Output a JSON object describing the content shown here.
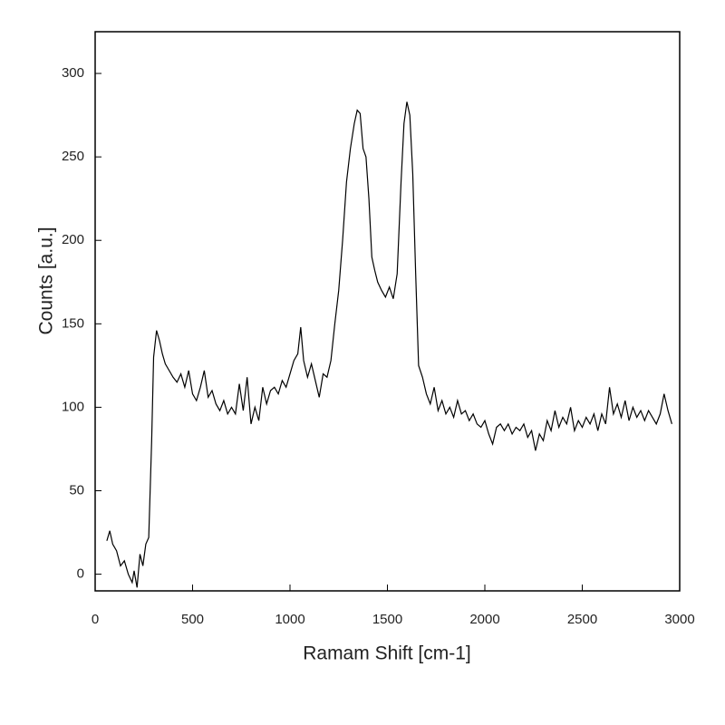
{
  "chart_data": {
    "type": "line",
    "x_label": "Ramam Shift [cm-1]",
    "y_label": "Counts [a.u.]",
    "xlim": [
      0,
      3000
    ],
    "ylim": [
      -10,
      325
    ],
    "xticks": [
      0,
      500,
      1000,
      1500,
      2000,
      2500,
      3000
    ],
    "yticks": [
      0,
      50,
      100,
      150,
      200,
      250,
      300
    ],
    "grid": false,
    "series": [
      {
        "color": "#000000",
        "x": [
          60,
          75,
          90,
          110,
          130,
          150,
          170,
          190,
          200,
          215,
          230,
          245,
          260,
          275,
          290,
          300,
          315,
          330,
          345,
          360,
          380,
          400,
          420,
          440,
          460,
          480,
          500,
          520,
          540,
          560,
          580,
          600,
          620,
          640,
          660,
          680,
          700,
          720,
          740,
          760,
          780,
          800,
          820,
          840,
          860,
          880,
          900,
          920,
          940,
          960,
          980,
          1000,
          1020,
          1040,
          1055,
          1070,
          1090,
          1110,
          1130,
          1150,
          1170,
          1190,
          1210,
          1230,
          1250,
          1270,
          1290,
          1310,
          1330,
          1345,
          1360,
          1375,
          1390,
          1405,
          1420,
          1435,
          1450,
          1470,
          1490,
          1510,
          1530,
          1550,
          1570,
          1585,
          1600,
          1615,
          1630,
          1645,
          1660,
          1680,
          1700,
          1720,
          1740,
          1760,
          1780,
          1800,
          1820,
          1840,
          1860,
          1880,
          1900,
          1920,
          1940,
          1960,
          1980,
          2000,
          2020,
          2040,
          2060,
          2080,
          2100,
          2120,
          2140,
          2160,
          2180,
          2200,
          2220,
          2240,
          2260,
          2280,
          2300,
          2320,
          2340,
          2360,
          2380,
          2400,
          2420,
          2440,
          2460,
          2480,
          2500,
          2520,
          2540,
          2560,
          2580,
          2600,
          2620,
          2640,
          2660,
          2680,
          2700,
          2720,
          2740,
          2760,
          2780,
          2800,
          2820,
          2840,
          2860,
          2880,
          2900,
          2920,
          2940,
          2960
        ],
        "values": [
          20,
          26,
          18,
          14,
          5,
          8,
          0,
          -5,
          2,
          -8,
          12,
          5,
          18,
          22,
          80,
          130,
          146,
          140,
          132,
          126,
          122,
          118,
          115,
          120,
          112,
          122,
          108,
          104,
          112,
          122,
          106,
          110,
          102,
          98,
          104,
          96,
          100,
          96,
          114,
          98,
          118,
          90,
          100,
          92,
          112,
          102,
          110,
          112,
          108,
          116,
          112,
          120,
          128,
          132,
          148,
          128,
          118,
          126,
          116,
          106,
          120,
          118,
          128,
          150,
          170,
          200,
          235,
          255,
          270,
          278,
          276,
          255,
          250,
          225,
          190,
          182,
          175,
          170,
          166,
          172,
          165,
          180,
          235,
          270,
          283,
          275,
          240,
          180,
          125,
          118,
          108,
          102,
          112,
          98,
          104,
          96,
          100,
          94,
          104,
          96,
          98,
          92,
          96,
          90,
          88,
          92,
          84,
          78,
          88,
          90,
          86,
          90,
          84,
          88,
          86,
          90,
          82,
          86,
          74,
          84,
          80,
          92,
          86,
          98,
          88,
          94,
          90,
          100,
          86,
          92,
          88,
          94,
          90,
          96,
          86,
          96,
          90,
          112,
          96,
          102,
          94,
          104,
          92,
          100,
          94,
          98,
          92,
          98,
          94,
          90,
          96,
          108,
          98,
          90
        ]
      }
    ]
  }
}
